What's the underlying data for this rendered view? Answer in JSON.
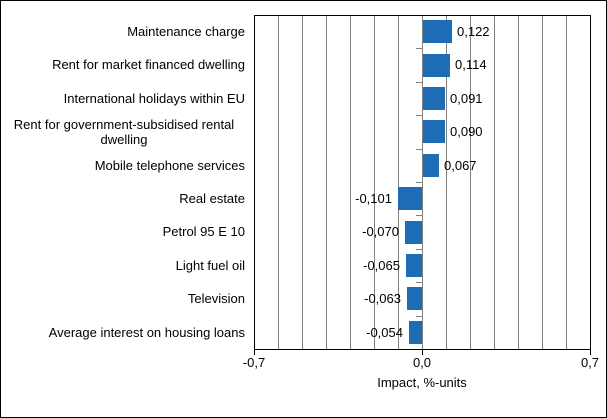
{
  "chart_data": {
    "type": "bar",
    "orientation": "horizontal",
    "title": "",
    "xlabel": "Impact, %-units",
    "xlim": [
      -0.7,
      0.7
    ],
    "gridline_step": 0.1,
    "grid": true,
    "legend_position": "none",
    "x_ticks": [
      {
        "value": -0.7,
        "label": "-0,7"
      },
      {
        "value": 0.0,
        "label": "0,0"
      },
      {
        "value": 0.7,
        "label": "0,7"
      }
    ],
    "series": [
      {
        "category": "Maintenance charge",
        "value": 0.122,
        "label": "0,122"
      },
      {
        "category": "Rent for market financed dwelling",
        "value": 0.114,
        "label": "0,114"
      },
      {
        "category": "International holidays within EU",
        "value": 0.091,
        "label": "0,091"
      },
      {
        "category": "Rent for government-subsidised rental dwelling",
        "value": 0.09,
        "label": "0,090"
      },
      {
        "category": "Mobile telephone services",
        "value": 0.067,
        "label": "0,067"
      },
      {
        "category": "Real estate",
        "value": -0.101,
        "label": "-0,101"
      },
      {
        "category": "Petrol 95 E 10",
        "value": -0.07,
        "label": "-0,070"
      },
      {
        "category": "Light fuel oil",
        "value": -0.065,
        "label": "-0,065"
      },
      {
        "category": "Television",
        "value": -0.063,
        "label": "-0,063"
      },
      {
        "category": "Average interest on housing loans",
        "value": -0.054,
        "label": "-0,054"
      }
    ],
    "colors": {
      "bar": "#1e6cb5",
      "gridline": "#808080",
      "category_axis": "#808080",
      "value_axis_tick": "#000000",
      "plot_border": "#000000",
      "text": "#000000",
      "background": "#ffffff"
    }
  }
}
